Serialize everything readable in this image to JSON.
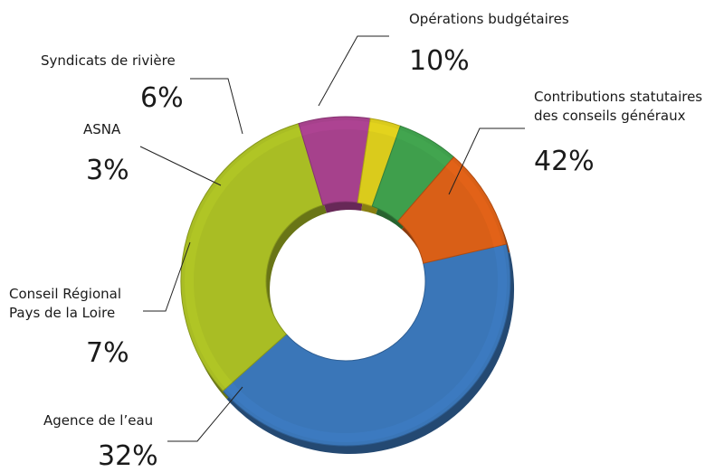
{
  "chart_data": {
    "type": "pie",
    "donut": true,
    "slices": [
      {
        "name": "Contributions statutaires des conseils généraux",
        "label_lines": [
          "Contributions statutaires",
          "des conseils généraux"
        ],
        "value": 42,
        "pct_label": "42%",
        "color": "#3a76b8"
      },
      {
        "name": "Agence de l’eau",
        "label_lines": [
          "Agence de l’eau"
        ],
        "value": 32,
        "pct_label": "32%",
        "color": "#a9bd24"
      },
      {
        "name": "Conseil Régional Pays de la Loire",
        "label_lines": [
          "Conseil Régional",
          "Pays de la Loire"
        ],
        "value": 7,
        "pct_label": "7%",
        "color": "#a6418c"
      },
      {
        "name": "ASNA",
        "label_lines": [
          "ASNA"
        ],
        "value": 3,
        "pct_label": "3%",
        "color": "#dacb1c"
      },
      {
        "name": "Syndicats de rivière",
        "label_lines": [
          "Syndicats de rivière"
        ],
        "value": 6,
        "pct_label": "6%",
        "color": "#3f9f4c"
      },
      {
        "name": "Opérations budgétaires",
        "label_lines": [
          "Opérations budgétaires"
        ],
        "value": 10,
        "pct_label": "10%",
        "color": "#d95f17"
      }
    ]
  }
}
